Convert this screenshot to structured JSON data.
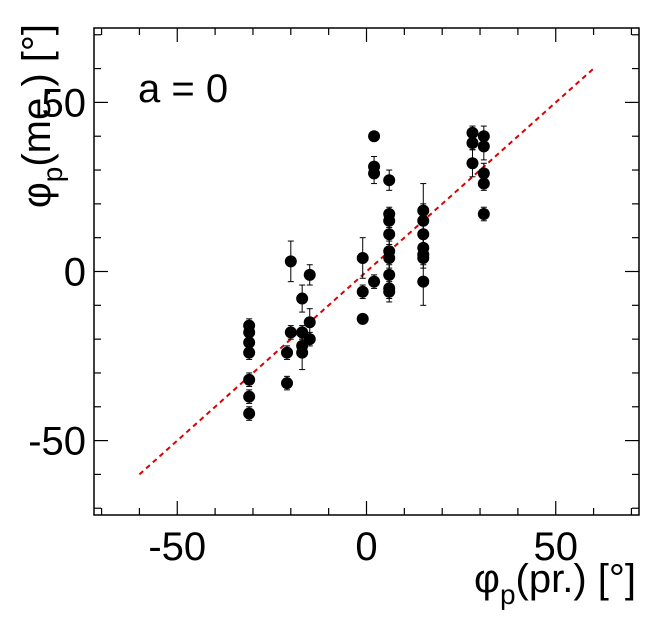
{
  "chart_data": {
    "type": "scatter",
    "title": "",
    "annotation": "a = 0",
    "xlabel": {
      "phi": "φ",
      "sub": "p",
      "rest": "(pr.) [°]"
    },
    "ylabel": {
      "phi": "φ",
      "sub": "p",
      "rest": "(me.) [°]"
    },
    "xlim": [
      -72,
      72
    ],
    "ylim": [
      -72,
      72
    ],
    "x_ticks": [
      {
        "value": -50,
        "label": "-50"
      },
      {
        "value": 0,
        "label": "0"
      },
      {
        "value": 50,
        "label": "50"
      }
    ],
    "y_ticks": [
      {
        "value": -50,
        "label": "-50"
      },
      {
        "value": 0,
        "label": "0"
      },
      {
        "value": 50,
        "label": "50"
      }
    ],
    "grid": false,
    "colors": {
      "points": "#000000",
      "fit_line": "#dd0000",
      "frame": "#000000"
    },
    "fit_line": {
      "x": [
        -60,
        60
      ],
      "y": [
        -60,
        60
      ],
      "style": "dashed"
    },
    "series": [
      {
        "points": [
          {
            "x": -31,
            "y": -16,
            "err": 2
          },
          {
            "x": -31,
            "y": -18,
            "err": 2
          },
          {
            "x": -31,
            "y": -21,
            "err": 2
          },
          {
            "x": -31,
            "y": -24,
            "err": 2
          },
          {
            "x": -31,
            "y": -32,
            "err": 2
          },
          {
            "x": -31,
            "y": -37,
            "err": 2
          },
          {
            "x": -31,
            "y": -42,
            "err": 2
          },
          {
            "x": -21,
            "y": -24,
            "err": 2
          },
          {
            "x": -21,
            "y": -33,
            "err": 2
          },
          {
            "x": -20,
            "y": 3,
            "err": 6
          },
          {
            "x": -20,
            "y": -18,
            "err": 2
          },
          {
            "x": -17,
            "y": -8,
            "err": 4
          },
          {
            "x": -17,
            "y": -18,
            "err": 2
          },
          {
            "x": -17,
            "y": -22,
            "err": 2
          },
          {
            "x": -17,
            "y": -24,
            "err": 5
          },
          {
            "x": -15,
            "y": -1,
            "err": 3
          },
          {
            "x": -15,
            "y": -15,
            "err": 4
          },
          {
            "x": -15,
            "y": -20,
            "err": 2
          },
          {
            "x": -1,
            "y": 4,
            "err": 6
          },
          {
            "x": -1,
            "y": -6,
            "err": 2
          },
          {
            "x": -1,
            "y": -14,
            "err": 1
          },
          {
            "x": 2,
            "y": 40,
            "err": 1
          },
          {
            "x": 2,
            "y": 31,
            "err": 3
          },
          {
            "x": 2,
            "y": 29,
            "err": 3
          },
          {
            "x": 2,
            "y": -3,
            "err": 2
          },
          {
            "x": 6,
            "y": 27,
            "err": 3
          },
          {
            "x": 6,
            "y": 17,
            "err": 2
          },
          {
            "x": 6,
            "y": 15,
            "err": 2
          },
          {
            "x": 6,
            "y": 11,
            "err": 3
          },
          {
            "x": 6,
            "y": 6,
            "err": 3
          },
          {
            "x": 6,
            "y": 4,
            "err": 3
          },
          {
            "x": 6,
            "y": -1,
            "err": 3
          },
          {
            "x": 6,
            "y": -5,
            "err": 3
          },
          {
            "x": 6,
            "y": -6,
            "err": 3
          },
          {
            "x": 15,
            "y": 18,
            "err": 2
          },
          {
            "x": 15,
            "y": 15,
            "err": 11
          },
          {
            "x": 15,
            "y": 11,
            "err": 3
          },
          {
            "x": 15,
            "y": 7,
            "err": 3
          },
          {
            "x": 15,
            "y": 5,
            "err": 3
          },
          {
            "x": 15,
            "y": 4,
            "err": 3
          },
          {
            "x": 15,
            "y": -3,
            "err": 7
          },
          {
            "x": 28,
            "y": 41,
            "err": 2
          },
          {
            "x": 28,
            "y": 38,
            "err": 2
          },
          {
            "x": 28,
            "y": 32,
            "err": 4
          },
          {
            "x": 31,
            "y": 40,
            "err": 3
          },
          {
            "x": 31,
            "y": 37,
            "err": 4
          },
          {
            "x": 31,
            "y": 29,
            "err": 3
          },
          {
            "x": 31,
            "y": 26,
            "err": 2
          },
          {
            "x": 31,
            "y": 17,
            "err": 2
          }
        ]
      }
    ]
  }
}
